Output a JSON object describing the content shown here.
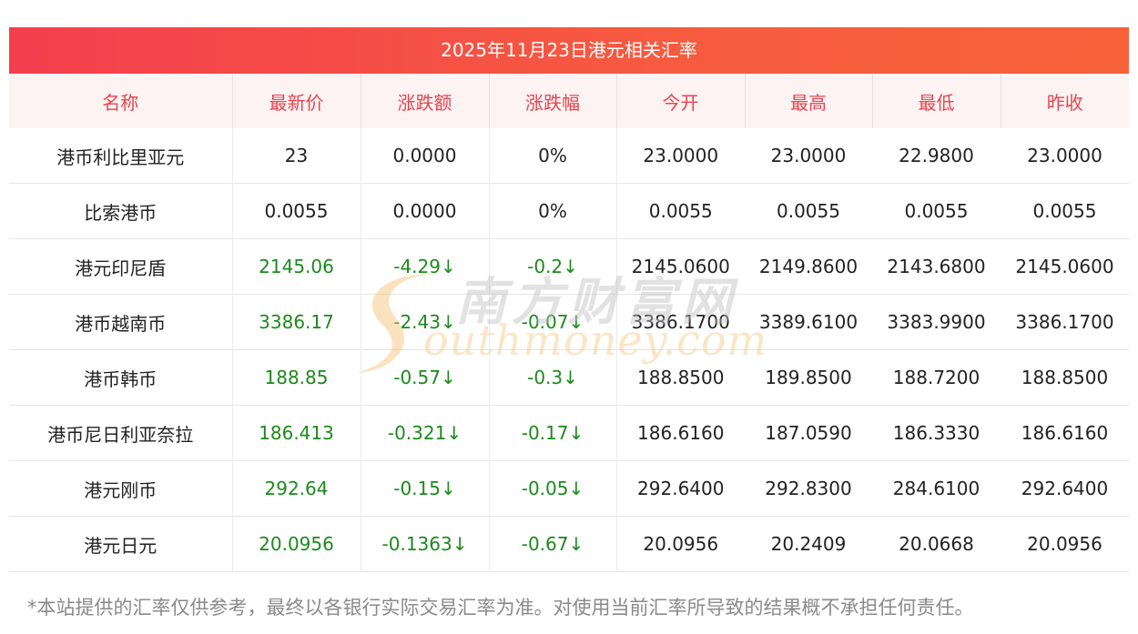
{
  "title": "2025年11月23日港元相关汇率",
  "columns": [
    "名称",
    "最新价",
    "涨跌额",
    "涨跌幅",
    "今开",
    "最高",
    "最低",
    "昨收"
  ],
  "rows": [
    {
      "name": "港币利比里亚元",
      "latest": "23",
      "change": "0.0000",
      "change_pct": "0%",
      "open": "23.0000",
      "high": "23.0000",
      "low": "22.9800",
      "prev_close": "23.0000",
      "down": false
    },
    {
      "name": "比索港币",
      "latest": "0.0055",
      "change": "0.0000",
      "change_pct": "0%",
      "open": "0.0055",
      "high": "0.0055",
      "low": "0.0055",
      "prev_close": "0.0055",
      "down": false
    },
    {
      "name": "港元印尼盾",
      "latest": "2145.06",
      "change": "-4.29↓",
      "change_pct": "-0.2↓",
      "open": "2145.0600",
      "high": "2149.8600",
      "low": "2143.6800",
      "prev_close": "2145.0600",
      "down": true
    },
    {
      "name": "港币越南币",
      "latest": "3386.17",
      "change": "-2.43↓",
      "change_pct": "-0.07↓",
      "open": "3386.1700",
      "high": "3389.6100",
      "low": "3383.9900",
      "prev_close": "3386.1700",
      "down": true
    },
    {
      "name": "港币韩币",
      "latest": "188.85",
      "change": "-0.57↓",
      "change_pct": "-0.3↓",
      "open": "188.8500",
      "high": "189.8500",
      "low": "188.7200",
      "prev_close": "188.8500",
      "down": true
    },
    {
      "name": "港币尼日利亚奈拉",
      "latest": "186.413",
      "change": "-0.321↓",
      "change_pct": "-0.17↓",
      "open": "186.6160",
      "high": "187.0590",
      "low": "186.3330",
      "prev_close": "186.6160",
      "down": true
    },
    {
      "name": "港元刚币",
      "latest": "292.64",
      "change": "-0.15↓",
      "change_pct": "-0.05↓",
      "open": "292.6400",
      "high": "292.8300",
      "low": "284.6100",
      "prev_close": "292.6400",
      "down": true
    },
    {
      "name": "港元日元",
      "latest": "20.0956",
      "change": "-0.1363↓",
      "change_pct": "-0.67↓",
      "open": "20.0956",
      "high": "20.2409",
      "low": "20.0668",
      "prev_close": "20.0956",
      "down": true
    }
  ],
  "watermark": {
    "cn": "南方财富网",
    "en": "outhmoney.com"
  },
  "disclaimer": "*本站提供的汇率仅供参考，最终以各银行实际交易汇率为准。对使用当前汇率所导致的结果概不承担任何责任。",
  "colors": {
    "header_gradient_start": "#f43f4e",
    "header_gradient_end": "#f8623a",
    "column_header_text": "#e8434f",
    "down_value": "#1c8a1c",
    "disclaimer_text": "#8a8a8a"
  }
}
